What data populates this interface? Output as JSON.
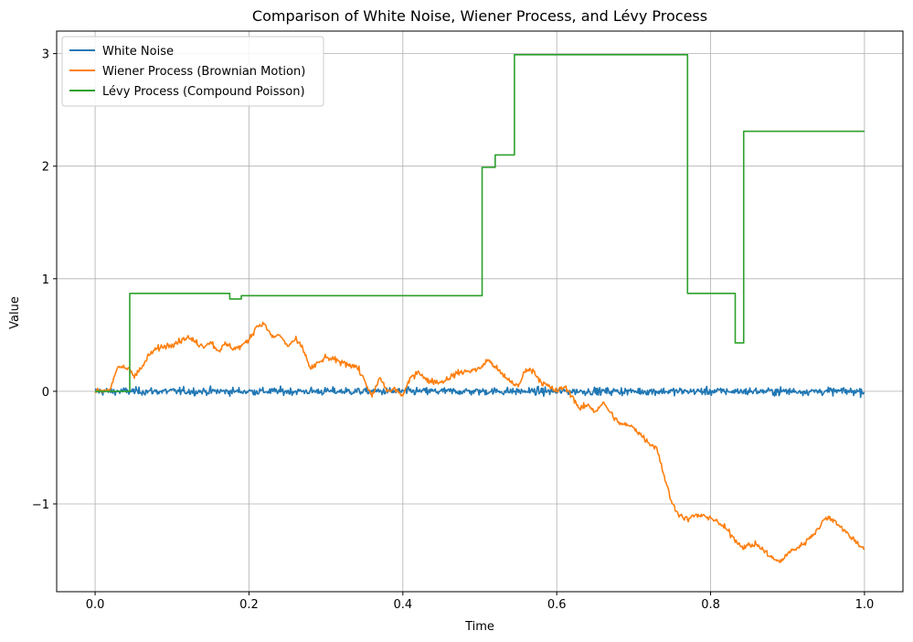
{
  "chart_data": {
    "type": "line",
    "title": "Comparison of White Noise, Wiener Process, and Lévy Process",
    "xlabel": "Time",
    "ylabel": "Value",
    "xlim": [
      -0.05,
      1.05
    ],
    "ylim": [
      -1.78,
      3.2
    ],
    "xticks": [
      0.0,
      0.2,
      0.4,
      0.6,
      0.8,
      1.0
    ],
    "xtick_labels": [
      "0.0",
      "0.2",
      "0.4",
      "0.6",
      "0.8",
      "1.0"
    ],
    "yticks": [
      -1,
      0,
      1,
      2,
      3
    ],
    "ytick_labels": [
      "−1",
      "0",
      "1",
      "2",
      "3"
    ],
    "grid": true,
    "legend_position": "top-left",
    "series": [
      {
        "name": "White Noise",
        "color": "#1f77b4",
        "kind": "noise",
        "noise_amplitude": 0.03,
        "x_range": [
          0.0,
          1.0
        ],
        "samples": 1000
      },
      {
        "name": "Wiener Process (Brownian Motion)",
        "color": "#ff7f0e",
        "kind": "path",
        "x": [
          0.0,
          0.02,
          0.03,
          0.045,
          0.05,
          0.06,
          0.07,
          0.08,
          0.1,
          0.12,
          0.14,
          0.15,
          0.16,
          0.17,
          0.18,
          0.19,
          0.2,
          0.21,
          0.22,
          0.23,
          0.24,
          0.25,
          0.26,
          0.27,
          0.28,
          0.3,
          0.32,
          0.34,
          0.35,
          0.36,
          0.37,
          0.38,
          0.39,
          0.4,
          0.41,
          0.42,
          0.43,
          0.45,
          0.47,
          0.5,
          0.51,
          0.52,
          0.53,
          0.55,
          0.56,
          0.57,
          0.58,
          0.6,
          0.61,
          0.62,
          0.63,
          0.64,
          0.65,
          0.66,
          0.68,
          0.7,
          0.72,
          0.73,
          0.74,
          0.75,
          0.76,
          0.77,
          0.78,
          0.8,
          0.82,
          0.84,
          0.86,
          0.88,
          0.89,
          0.9,
          0.92,
          0.94,
          0.95,
          0.96,
          0.98,
          1.0
        ],
        "y": [
          0.0,
          0.02,
          0.22,
          0.2,
          0.14,
          0.2,
          0.32,
          0.38,
          0.42,
          0.48,
          0.4,
          0.44,
          0.36,
          0.42,
          0.38,
          0.4,
          0.46,
          0.58,
          0.6,
          0.48,
          0.5,
          0.4,
          0.46,
          0.38,
          0.2,
          0.3,
          0.26,
          0.22,
          0.1,
          -0.05,
          0.12,
          0.0,
          0.02,
          -0.04,
          0.12,
          0.18,
          0.1,
          0.08,
          0.16,
          0.2,
          0.28,
          0.22,
          0.14,
          0.04,
          0.2,
          0.18,
          0.08,
          0.0,
          0.04,
          -0.04,
          -0.16,
          -0.12,
          -0.18,
          -0.1,
          -0.28,
          -0.32,
          -0.46,
          -0.5,
          -0.76,
          -1.0,
          -1.1,
          -1.14,
          -1.1,
          -1.12,
          -1.22,
          -1.38,
          -1.36,
          -1.48,
          -1.52,
          -1.44,
          -1.36,
          -1.22,
          -1.12,
          -1.14,
          -1.28,
          -1.4
        ]
      },
      {
        "name": "Lévy Process (Compound Poisson)",
        "color": "#2ca02c",
        "kind": "step",
        "x": [
          0.0,
          0.045,
          0.175,
          0.19,
          0.503,
          0.52,
          0.545,
          0.77,
          0.832,
          0.843,
          1.0
        ],
        "y": [
          0.0,
          0.87,
          0.82,
          0.85,
          1.99,
          2.1,
          2.99,
          0.87,
          0.43,
          2.31,
          2.31
        ]
      }
    ]
  }
}
